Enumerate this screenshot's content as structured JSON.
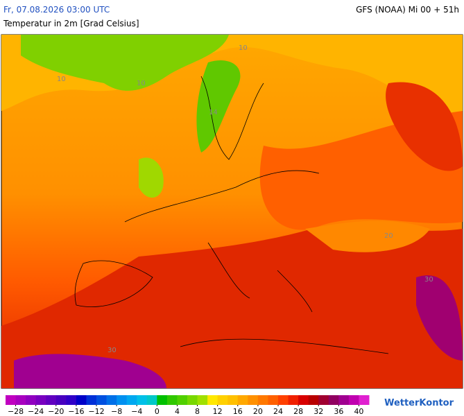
{
  "header": {
    "datetime": "Fr, 07.08.2026 03:00 UTC",
    "model": "GFS (NOAA) Mi 00 + 51h",
    "subtitle": "Temperatur in 2m [Grad Celsius]"
  },
  "map_labels": [
    "10",
    "10",
    "14",
    "10",
    "20",
    "30",
    "30"
  ],
  "colorbar": {
    "range": [
      -30,
      42
    ],
    "colors": [
      "#c000c0",
      "#a800c0",
      "#9000c0",
      "#7800c0",
      "#6000c0",
      "#4800c0",
      "#3000c8",
      "#0000c8",
      "#0030d8",
      "#0050e0",
      "#0070e8",
      "#0090f0",
      "#00a8f0",
      "#00c0e8",
      "#00c8c8",
      "#00c000",
      "#30c800",
      "#50d000",
      "#78d800",
      "#a0e000",
      "#ffe800",
      "#ffd000",
      "#ffc000",
      "#ffa800",
      "#ff9000",
      "#ff7800",
      "#ff6000",
      "#ff4000",
      "#f02000",
      "#d80000",
      "#b80000",
      "#a00030",
      "#900060",
      "#a00090",
      "#c000b0",
      "#e020d0"
    ],
    "ticks": [
      {
        "value": -28,
        "label": "−28"
      },
      {
        "value": -24,
        "label": "−24"
      },
      {
        "value": -20,
        "label": "−20"
      },
      {
        "value": -16,
        "label": "−16"
      },
      {
        "value": -12,
        "label": "−12"
      },
      {
        "value": -8,
        "label": "−8"
      },
      {
        "value": -4,
        "label": "−4"
      },
      0,
      4,
      8,
      12,
      16,
      20,
      24,
      28,
      32,
      36,
      40
    ]
  },
  "brand": "WetterKontor"
}
